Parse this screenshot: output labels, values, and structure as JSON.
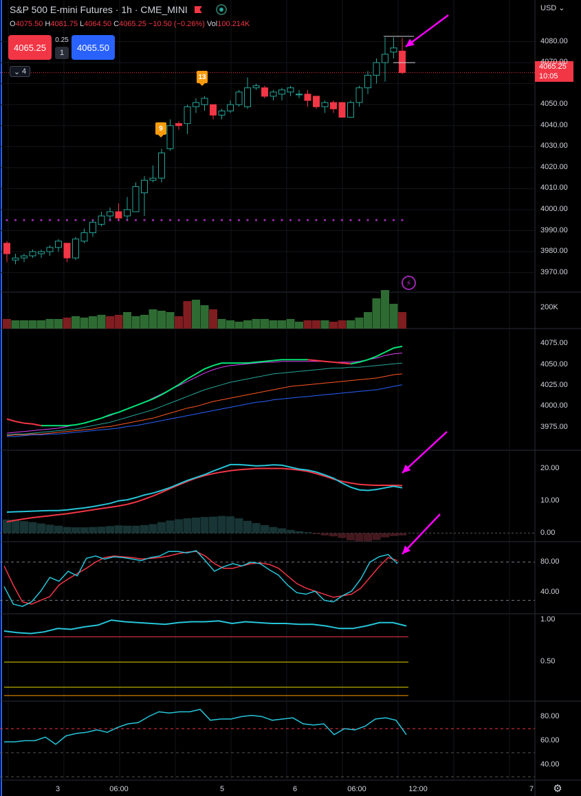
{
  "symbol": {
    "title": "S&P 500 E-mini Futures · 1h · CME_MINI"
  },
  "ohlc": {
    "open_label": "O",
    "open": "4075.50",
    "high_label": "H",
    "high": "4081.75",
    "low_label": "L",
    "low": "4064.50",
    "close_label": "C",
    "close": "4065.25",
    "change": "−10.50 (−0.26%)",
    "volume_label": "Vol",
    "volume": "100.214K"
  },
  "trade": {
    "sell_price": "4065.25",
    "spread": "0.25",
    "quantity": "1",
    "buy_price": "4065.50"
  },
  "indicators_toggle": {
    "count": "4",
    "icon": "chevron-down-icon"
  },
  "price_axis": {
    "currency": "USD",
    "labels": [
      "4080.00",
      "4070.00",
      "4050.00",
      "4040.00",
      "4030.00",
      "4020.00",
      "4010.00",
      "4000.00",
      "3990.00",
      "3980.00",
      "3970.00"
    ],
    "last_price": "4065.25",
    "countdown": "10:05"
  },
  "volume_axis": {
    "labels": [
      "200K"
    ]
  },
  "ma_axis": {
    "labels": [
      "4075.00",
      "4050.00",
      "4025.00",
      "4000.00",
      "3975.00"
    ]
  },
  "macd_axis": {
    "labels": [
      "20.00",
      "10.00",
      "0.00"
    ]
  },
  "stoch_axis": {
    "labels": [
      "80.00",
      "40.00"
    ]
  },
  "osc_axis": {
    "labels": [
      "1.00",
      "0.50"
    ]
  },
  "rsi_axis": {
    "labels": [
      "80.00",
      "60.00",
      "40.00"
    ]
  },
  "time_axis": {
    "labels": [
      "3",
      "06:00",
      "5",
      "6",
      "06:00",
      "12:00",
      "7"
    ]
  },
  "markers": {
    "badge_a": "9",
    "badge_b": "13"
  },
  "colors": {
    "up": "#26a69a",
    "down": "#f23645",
    "ma_fast_up": "#00e676",
    "ma_fast_down": "#f23645",
    "ma2": "#e040fb",
    "ma3": "#26a69a",
    "ma4": "#ff5722",
    "ma5": "#2962ff",
    "macd": "#26c6da",
    "signal": "#f23645",
    "annotation": "#ff00ff",
    "pivot": "#9c27b0"
  },
  "chart_data": [
    {
      "type": "candlestick",
      "title": "S&P 500 E-mini Futures · 1h · CME_MINI",
      "ylim": [
        3963,
        4090
      ],
      "candles": [
        [
          3984,
          3985,
          3975,
          3979
        ],
        [
          3976,
          3979,
          3974,
          3977
        ],
        [
          3977,
          3979,
          3975,
          3978
        ],
        [
          3978,
          3981,
          3977,
          3980
        ],
        [
          3979,
          3981,
          3977,
          3980
        ],
        [
          3980,
          3983,
          3978,
          3982
        ],
        [
          3982,
          3986,
          3980,
          3985
        ],
        [
          3984,
          3984,
          3975,
          3977
        ],
        [
          3977,
          3987,
          3976,
          3986
        ],
        [
          3985,
          3991,
          3984,
          3989
        ],
        [
          3989,
          3995,
          3987,
          3994
        ],
        [
          3993,
          3999,
          3992,
          3997
        ],
        [
          3997,
          4001,
          3995,
          3999
        ],
        [
          3999,
          4003,
          3995,
          3996
        ],
        [
          3997,
          4006,
          3995,
          4000
        ],
        [
          3999,
          4013,
          3999,
          4011
        ],
        [
          4008,
          4016,
          3997,
          4014
        ],
        [
          4014,
          4021,
          4013,
          4015
        ],
        [
          4015,
          4029,
          4013,
          4027
        ],
        [
          4029,
          4043,
          4028,
          4040
        ],
        [
          4041,
          4042,
          4038,
          4040
        ],
        [
          4041,
          4050,
          4036,
          4049
        ],
        [
          4049,
          4053,
          4046,
          4051
        ],
        [
          4050,
          4054,
          4047,
          4053
        ],
        [
          4050,
          4050,
          4043,
          4045
        ],
        [
          4045,
          4048,
          4043,
          4047
        ],
        [
          4047,
          4052,
          4046,
          4050
        ],
        [
          4050,
          4057,
          4049,
          4056
        ],
        [
          4049,
          4063,
          4048,
          4058
        ],
        [
          4058,
          4060,
          4057,
          4059
        ],
        [
          4058,
          4059,
          4053,
          4054
        ],
        [
          4054,
          4057,
          4052,
          4056
        ],
        [
          4055,
          4058,
          4052,
          4057
        ],
        [
          4056,
          4059,
          4054,
          4058
        ],
        [
          4055,
          4057,
          4053,
          4055
        ],
        [
          4055,
          4057,
          4049,
          4052
        ],
        [
          4054,
          4054,
          4048,
          4049
        ],
        [
          4049,
          4052,
          4046,
          4051
        ],
        [
          4051,
          4052,
          4046,
          4048
        ],
        [
          4051,
          4051,
          4044,
          4044
        ],
        [
          4044,
          4052,
          4044,
          4051
        ],
        [
          4051,
          4059,
          4049,
          4058
        ],
        [
          4058,
          4066,
          4055,
          4064
        ],
        [
          4064,
          4072,
          4060,
          4070
        ],
        [
          4070,
          4082,
          4061,
          4074
        ],
        [
          4075,
          4082,
          4072,
          4077
        ],
        [
          4075.5,
          4081.75,
          4064.5,
          4065.25
        ]
      ],
      "pivot_level": 3995,
      "bar_limits": [
        4082.5,
        4070
      ]
    },
    {
      "type": "bar",
      "series": [
        {
          "values": [
            7,
            6,
            6,
            6,
            6,
            7,
            7,
            8,
            9,
            8,
            9,
            10,
            9,
            10,
            12,
            9,
            10,
            14,
            13,
            12,
            9,
            20,
            21,
            17,
            14,
            7,
            6,
            5,
            6,
            7,
            7,
            6,
            6,
            7,
            5,
            6,
            6,
            6,
            5,
            6,
            6,
            8,
            12,
            22,
            28,
            18,
            12
          ]
        }
      ],
      "down_bars": [
        0,
        7,
        12,
        13,
        20,
        21,
        24,
        35,
        36,
        38,
        39,
        46
      ],
      "ylim": [
        0,
        250
      ]
    },
    {
      "type": "line",
      "ylim": [
        3950,
        4090
      ],
      "series": [
        {
          "values": [
            3985,
            3982,
            3980,
            3979,
            3977,
            3977,
            3977,
            3977,
            3978,
            3980,
            3983,
            3986,
            3990,
            3993,
            3997,
            4001,
            4005,
            4009,
            4014,
            4020,
            4026,
            4033,
            4039,
            4045,
            4049,
            4052,
            4052,
            4052,
            4052,
            4053,
            4054,
            4055,
            4056,
            4056,
            4056,
            4056,
            4055,
            4054,
            4053,
            4052,
            4051,
            4053,
            4056,
            4060,
            4065,
            4070,
            4072
          ]
        },
        {
          "values": [
            3968,
            3969,
            3970,
            3971,
            3972,
            3973,
            3974,
            3976,
            3978,
            3980,
            3983,
            3986,
            3989,
            3993,
            3997,
            4001,
            4005,
            4010,
            4015,
            4020,
            4025,
            4030,
            4035,
            4040,
            4044,
            4047,
            4049,
            4050,
            4051,
            4052,
            4053,
            4053,
            4054,
            4054,
            4054,
            4054,
            4054,
            4054,
            4053,
            4053,
            4053,
            4054,
            4056,
            4058,
            4061,
            4063,
            4064
          ]
        },
        {
          "values": [
            3966,
            3967,
            3967,
            3968,
            3969,
            3970,
            3971,
            3972,
            3973,
            3975,
            3977,
            3979,
            3981,
            3984,
            3987,
            3990,
            3993,
            3996,
            4000,
            4004,
            4008,
            4012,
            4016,
            4020,
            4023,
            4026,
            4029,
            4031,
            4033,
            4035,
            4037,
            4039,
            4040,
            4041,
            4042,
            4043,
            4044,
            4045,
            4046,
            4046,
            4047,
            4047,
            4048,
            4049,
            4050,
            4051,
            4052
          ]
        },
        {
          "values": [
            3965,
            3966,
            3966,
            3967,
            3967,
            3968,
            3969,
            3970,
            3971,
            3972,
            3973,
            3975,
            3976,
            3978,
            3980,
            3982,
            3984,
            3986,
            3989,
            3992,
            3995,
            3998,
            4000,
            4003,
            4006,
            4008,
            4010,
            4012,
            4014,
            4016,
            4018,
            4020,
            4022,
            4024,
            4025,
            4026,
            4027,
            4028,
            4029,
            4030,
            4031,
            4032,
            4033,
            4034,
            4036,
            4038,
            4039
          ]
        },
        {
          "values": [
            3964,
            3964,
            3965,
            3966,
            3966,
            3967,
            3967,
            3968,
            3969,
            3970,
            3971,
            3972,
            3973,
            3974,
            3976,
            3977,
            3979,
            3981,
            3983,
            3985,
            3987,
            3989,
            3991,
            3993,
            3995,
            3997,
            3999,
            4001,
            4003,
            4005,
            4006,
            4008,
            4009,
            4010,
            4011,
            4012,
            4013,
            4014,
            4015,
            4016,
            4017,
            4018,
            4019,
            4020,
            4022,
            4024,
            4026
          ]
        }
      ]
    },
    {
      "type": "line",
      "ylim": [
        -2,
        25
      ],
      "series": [
        {
          "values": [
            6.5,
            6.6,
            6.7,
            6.8,
            6.9,
            7,
            7,
            7.2,
            7.5,
            7.8,
            8.2,
            8.7,
            9.2,
            10,
            10.3,
            11,
            11.8,
            12.4,
            13.2,
            14.1,
            15.2,
            16.3,
            17.2,
            18.1,
            19.2,
            20.2,
            21.2,
            21.2,
            21,
            20.8,
            20.9,
            21.1,
            21,
            20.4,
            19.8,
            19.5,
            18.9,
            18,
            17,
            15.5,
            14.2,
            13.4,
            13.2,
            13.5,
            14,
            14.5,
            14
          ]
        },
        {
          "values": [
            3.5,
            4,
            4.4,
            4.8,
            5.1,
            5.4,
            5.7,
            6,
            6.4,
            6.8,
            7.2,
            7.6,
            8,
            8.4,
            8.9,
            9.6,
            10.5,
            11.5,
            12.6,
            13.8,
            14.9,
            16,
            17,
            17.8,
            18.4,
            18.9,
            19.3,
            19.6,
            19.8,
            20,
            20,
            20,
            20,
            19.8,
            19.5,
            19.1,
            18.4,
            17.6,
            16.7,
            16,
            15.5,
            15.1,
            14.9,
            14.8,
            14.8,
            14.8,
            14.7
          ]
        },
        {
          "values": [
            4.2,
            4.2,
            3.7,
            3.4,
            3,
            2.6,
            2.3,
            1.9,
            1.8,
            1.8,
            1.9,
            2,
            2.2,
            2.4,
            2.3,
            2.3,
            2.5,
            2.8,
            3.4,
            3.9,
            4.3,
            4.6,
            4.8,
            5,
            5.1,
            5.3,
            5.2,
            4.6,
            3.8,
            3.1,
            2.5,
            1.9,
            1.5,
            1,
            0.6,
            0.3,
            -0.3,
            -0.7,
            -1,
            -1.5,
            -2.2,
            -2.5,
            -2.5,
            -2.1,
            -1.3,
            -0.9,
            -0.7
          ]
        }
      ]
    },
    {
      "type": "line",
      "ylim": [
        15,
        105
      ],
      "series": [
        {
          "values": [
            48,
            25,
            22,
            28,
            42,
            60,
            55,
            68,
            62,
            85,
            88,
            84,
            87,
            86,
            84,
            82,
            86,
            88,
            94,
            94,
            92,
            95,
            82,
            68,
            74,
            78,
            75,
            80,
            78,
            70,
            63,
            50,
            40,
            38,
            42,
            30,
            28,
            36,
            42,
            58,
            80,
            87,
            90,
            78
          ]
        },
        {
          "values": [
            75,
            50,
            28,
            25,
            30,
            35,
            50,
            58,
            65,
            72,
            80,
            86,
            88,
            87,
            86,
            84,
            85,
            86,
            88,
            91,
            93,
            94,
            88,
            78,
            72,
            72,
            75,
            78,
            79,
            77,
            72,
            62,
            52,
            46,
            42,
            38,
            34,
            36,
            38,
            46,
            60,
            74,
            86,
            82
          ]
        }
      ]
    },
    {
      "type": "line",
      "ylim": [
        0.05,
        1.05
      ],
      "series": [
        {
          "values": [
            0.87,
            0.85,
            0.84,
            0.86,
            0.9,
            0.89,
            0.92,
            0.94,
            1,
            0.98,
            0.97,
            0.96,
            0.95,
            0.97,
            0.98,
            0.98,
            0.99,
            0.96,
            0.98,
            0.97,
            0.96,
            0.96,
            0.95,
            0.95,
            0.93,
            0.9,
            0.9,
            0.93,
            0.97,
            0.97,
            0.93
          ]
        }
      ],
      "levels": [
        0.8,
        0.5,
        0.2,
        0.1
      ]
    },
    {
      "type": "line",
      "ylim": [
        30,
        90
      ],
      "series": [
        {
          "values": [
            59,
            59,
            60,
            60,
            63,
            57,
            64,
            66,
            67,
            69,
            67,
            71,
            74,
            75,
            80,
            84,
            83,
            84,
            84,
            86,
            77,
            78,
            78,
            80,
            81,
            80,
            77,
            78,
            79,
            74,
            73,
            74,
            65,
            70,
            69,
            72,
            78,
            79,
            77,
            65
          ]
        }
      ],
      "levels": [
        70,
        50,
        30
      ]
    }
  ]
}
